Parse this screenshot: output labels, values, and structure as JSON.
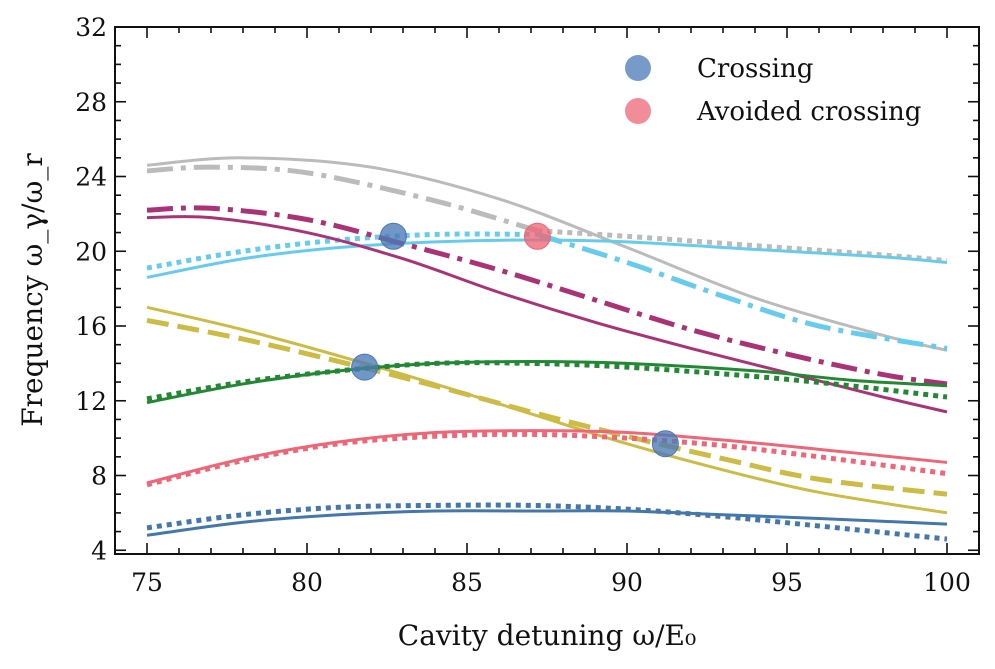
{
  "chart_data": {
    "type": "line",
    "title": "",
    "xlabel": "Cavity detuning ω/E₀",
    "ylabel": "Frequency ω_γ/ω_r",
    "xlim": [
      74,
      101
    ],
    "ylim": [
      3.8,
      32
    ],
    "xticks": [
      75,
      80,
      85,
      90,
      95,
      100
    ],
    "yticks": [
      4,
      8,
      12,
      16,
      20,
      24,
      28,
      32
    ],
    "legend": {
      "position": "top-right",
      "entries": [
        {
          "label": "Crossing",
          "color": "#4a7ab6"
        },
        {
          "label": "Avoided crossing",
          "color": "#ee6677"
        }
      ]
    },
    "series": [
      {
        "name": "gray-solid",
        "color": "#bbbbbb",
        "style": "solid",
        "x": [
          75,
          78,
          82,
          86,
          90,
          94,
          98,
          100
        ],
        "y": [
          24.6,
          25.0,
          24.5,
          22.8,
          20.2,
          17.5,
          15.5,
          14.7
        ]
      },
      {
        "name": "gray-dashdot",
        "color": "#bbbbbb",
        "style": "dashdot",
        "x": [
          75,
          77,
          80,
          84,
          87.2
        ],
        "y": [
          24.3,
          24.5,
          24.2,
          22.7,
          21.1
        ]
      },
      {
        "name": "gray-dotted",
        "color": "#bbbbbb",
        "style": "dotted",
        "x": [
          87.2,
          90,
          94,
          98,
          100
        ],
        "y": [
          21.1,
          20.8,
          20.3,
          19.8,
          19.5
        ]
      },
      {
        "name": "cyan-solid",
        "color": "#66ccee",
        "style": "solid",
        "x": [
          75,
          78,
          81,
          84,
          87,
          90,
          94,
          98,
          100
        ],
        "y": [
          18.6,
          19.6,
          20.2,
          20.5,
          20.6,
          20.5,
          20.1,
          19.7,
          19.4
        ]
      },
      {
        "name": "cyan-dotted",
        "color": "#66ccee",
        "style": "dotted",
        "x": [
          75,
          78,
          81,
          84,
          87.2
        ],
        "y": [
          19.1,
          20.0,
          20.6,
          20.9,
          20.9
        ]
      },
      {
        "name": "cyan-dashdot",
        "color": "#66ccee",
        "style": "dashdot",
        "x": [
          87.2,
          90,
          93,
          96,
          100
        ],
        "y": [
          20.9,
          19.4,
          17.6,
          16.0,
          14.8
        ]
      },
      {
        "name": "purple-solid",
        "color": "#aa3377",
        "style": "solid",
        "x": [
          75,
          77,
          80,
          83,
          86,
          89,
          92,
          95,
          98,
          100
        ],
        "y": [
          21.8,
          21.8,
          21.0,
          19.6,
          17.8,
          16.2,
          14.8,
          13.5,
          12.2,
          11.4
        ]
      },
      {
        "name": "purple-dashdot",
        "color": "#aa3377",
        "style": "dashdot",
        "x": [
          75,
          77,
          80,
          83,
          86,
          89,
          92,
          95,
          98,
          100
        ],
        "y": [
          22.2,
          22.3,
          21.7,
          20.4,
          19.0,
          17.4,
          15.8,
          14.5,
          13.4,
          12.9
        ]
      },
      {
        "name": "yellow-solid",
        "color": "#ccbb44",
        "style": "solid",
        "x": [
          75,
          78,
          81,
          84,
          87,
          90,
          93,
          96,
          100
        ],
        "y": [
          17.0,
          15.8,
          14.4,
          12.9,
          11.3,
          9.7,
          8.3,
          7.1,
          6.0
        ]
      },
      {
        "name": "yellow-dashed",
        "color": "#ccbb44",
        "style": "dashed",
        "x": [
          75,
          78,
          81,
          84,
          87,
          90,
          93,
          96,
          100
        ],
        "y": [
          16.3,
          15.3,
          14.1,
          12.8,
          11.4,
          10.1,
          8.9,
          7.8,
          7.0
        ]
      },
      {
        "name": "green-solid",
        "color": "#228833",
        "style": "solid",
        "x": [
          75,
          78,
          81,
          84,
          87,
          90,
          94,
          97,
          100
        ],
        "y": [
          11.9,
          12.9,
          13.6,
          14.0,
          14.1,
          14.0,
          13.6,
          13.1,
          12.8
        ]
      },
      {
        "name": "green-dotted",
        "color": "#228833",
        "style": "dotted",
        "x": [
          75,
          78,
          81,
          84,
          87,
          90,
          94,
          97,
          100
        ],
        "y": [
          12.1,
          13.0,
          13.6,
          14.0,
          14.0,
          13.8,
          13.3,
          12.8,
          12.2
        ]
      },
      {
        "name": "red-solid",
        "color": "#ee6677",
        "style": "solid",
        "x": [
          75,
          78,
          81,
          84,
          87,
          90,
          93,
          96,
          100
        ],
        "y": [
          7.6,
          8.9,
          9.8,
          10.3,
          10.4,
          10.3,
          9.9,
          9.4,
          8.7
        ]
      },
      {
        "name": "red-dotted",
        "color": "#ee6677",
        "style": "dotted",
        "x": [
          75,
          78,
          81,
          84,
          87,
          90,
          93,
          96,
          100
        ],
        "y": [
          7.5,
          8.8,
          9.7,
          10.1,
          10.2,
          10.0,
          9.6,
          9.0,
          8.1
        ]
      },
      {
        "name": "blue-solid",
        "color": "#4477aa",
        "style": "solid",
        "x": [
          75,
          78,
          81,
          84,
          87,
          90,
          93,
          96,
          100
        ],
        "y": [
          4.8,
          5.5,
          5.9,
          6.1,
          6.1,
          6.1,
          5.9,
          5.7,
          5.4
        ]
      },
      {
        "name": "blue-dotted",
        "color": "#4477aa",
        "style": "dotted",
        "x": [
          75,
          78,
          81,
          84,
          87,
          90,
          93,
          96,
          100
        ],
        "y": [
          5.2,
          5.9,
          6.3,
          6.4,
          6.4,
          6.2,
          5.8,
          5.3,
          4.6
        ]
      }
    ],
    "markers": [
      {
        "type": "Crossing",
        "x": 82.7,
        "y": 20.8,
        "color": "#4a7ab6"
      },
      {
        "type": "Crossing",
        "x": 81.8,
        "y": 13.8,
        "color": "#4a7ab6"
      },
      {
        "type": "Crossing",
        "x": 91.2,
        "y": 9.7,
        "color": "#4a7ab6"
      },
      {
        "type": "Avoided crossing",
        "x": 87.2,
        "y": 20.8,
        "color": "#ee6677"
      }
    ]
  }
}
